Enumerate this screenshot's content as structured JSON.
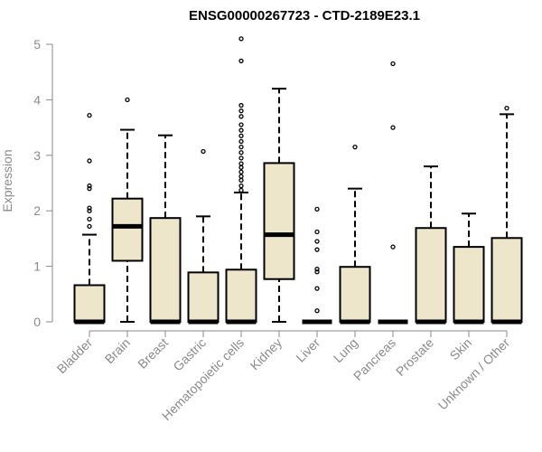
{
  "chart_data": {
    "type": "boxplot",
    "title": "ENSG00000267723 - CTD-2189E23.1",
    "ylabel": "Expression",
    "xlabel": "",
    "ylim": [
      0,
      5.1
    ],
    "yticks": [
      0,
      1,
      2,
      3,
      4,
      5
    ],
    "grid": false,
    "box_fill": "#EDE6CB",
    "box_stroke": "#000000",
    "axis_color": "#8a8a8a",
    "categories": [
      "Bladder",
      "Brain",
      "Breast",
      "Gastric",
      "Hematopoietic cells",
      "Kidney",
      "Liver",
      "Lung",
      "Pancreas",
      "Prostate",
      "Skin",
      "Unknown / Other"
    ],
    "boxes": [
      {
        "category": "Bladder",
        "q1": 0,
        "median": 0,
        "q3": 0.66,
        "whisker_low": 0,
        "whisker_high": 1.57,
        "outliers": [
          1.72,
          1.85,
          2.0,
          2.05,
          2.4,
          2.45,
          2.9,
          3.72
        ]
      },
      {
        "category": "Brain",
        "q1": 1.1,
        "median": 1.72,
        "q3": 2.22,
        "whisker_low": 0,
        "whisker_high": 3.46,
        "outliers": [
          4.0
        ]
      },
      {
        "category": "Breast",
        "q1": 0,
        "median": 0,
        "q3": 1.87,
        "whisker_low": 0,
        "whisker_high": 3.36,
        "outliers": []
      },
      {
        "category": "Gastric",
        "q1": 0,
        "median": 0,
        "q3": 0.89,
        "whisker_low": 0,
        "whisker_high": 1.9,
        "outliers": [
          3.07
        ]
      },
      {
        "category": "Hematopoietic cells",
        "q1": 0,
        "median": 0,
        "q3": 0.94,
        "whisker_low": 0,
        "whisker_high": 2.33,
        "outliers": [
          2.37,
          2.45,
          2.55,
          2.62,
          2.7,
          2.78,
          2.85,
          2.95,
          3.05,
          3.15,
          3.25,
          3.35,
          3.45,
          3.55,
          3.7,
          3.8,
          3.9,
          4.7,
          5.1
        ]
      },
      {
        "category": "Kidney",
        "q1": 0.77,
        "median": 1.57,
        "q3": 2.86,
        "whisker_low": 0,
        "whisker_high": 4.2,
        "outliers": []
      },
      {
        "category": "Liver",
        "q1": 0,
        "median": 0,
        "q3": 0,
        "whisker_low": 0,
        "whisker_high": 0,
        "outliers": [
          0.2,
          0.6,
          0.9,
          0.95,
          1.3,
          1.45,
          1.62,
          2.03
        ]
      },
      {
        "category": "Lung",
        "q1": 0,
        "median": 0,
        "q3": 0.99,
        "whisker_low": 0,
        "whisker_high": 2.4,
        "outliers": [
          3.15
        ]
      },
      {
        "category": "Pancreas",
        "q1": 0,
        "median": 0,
        "q3": 0,
        "whisker_low": 0,
        "whisker_high": 0,
        "outliers": [
          1.35,
          3.5,
          4.65
        ]
      },
      {
        "category": "Prostate",
        "q1": 0,
        "median": 0,
        "q3": 1.69,
        "whisker_low": 0,
        "whisker_high": 2.8,
        "outliers": []
      },
      {
        "category": "Skin",
        "q1": 0,
        "median": 0,
        "q3": 1.35,
        "whisker_low": 0,
        "whisker_high": 1.95,
        "outliers": []
      },
      {
        "category": "Unknown / Other",
        "q1": 0,
        "median": 0,
        "q3": 1.51,
        "whisker_low": 0,
        "whisker_high": 3.74,
        "outliers": [
          3.85
        ]
      }
    ]
  }
}
